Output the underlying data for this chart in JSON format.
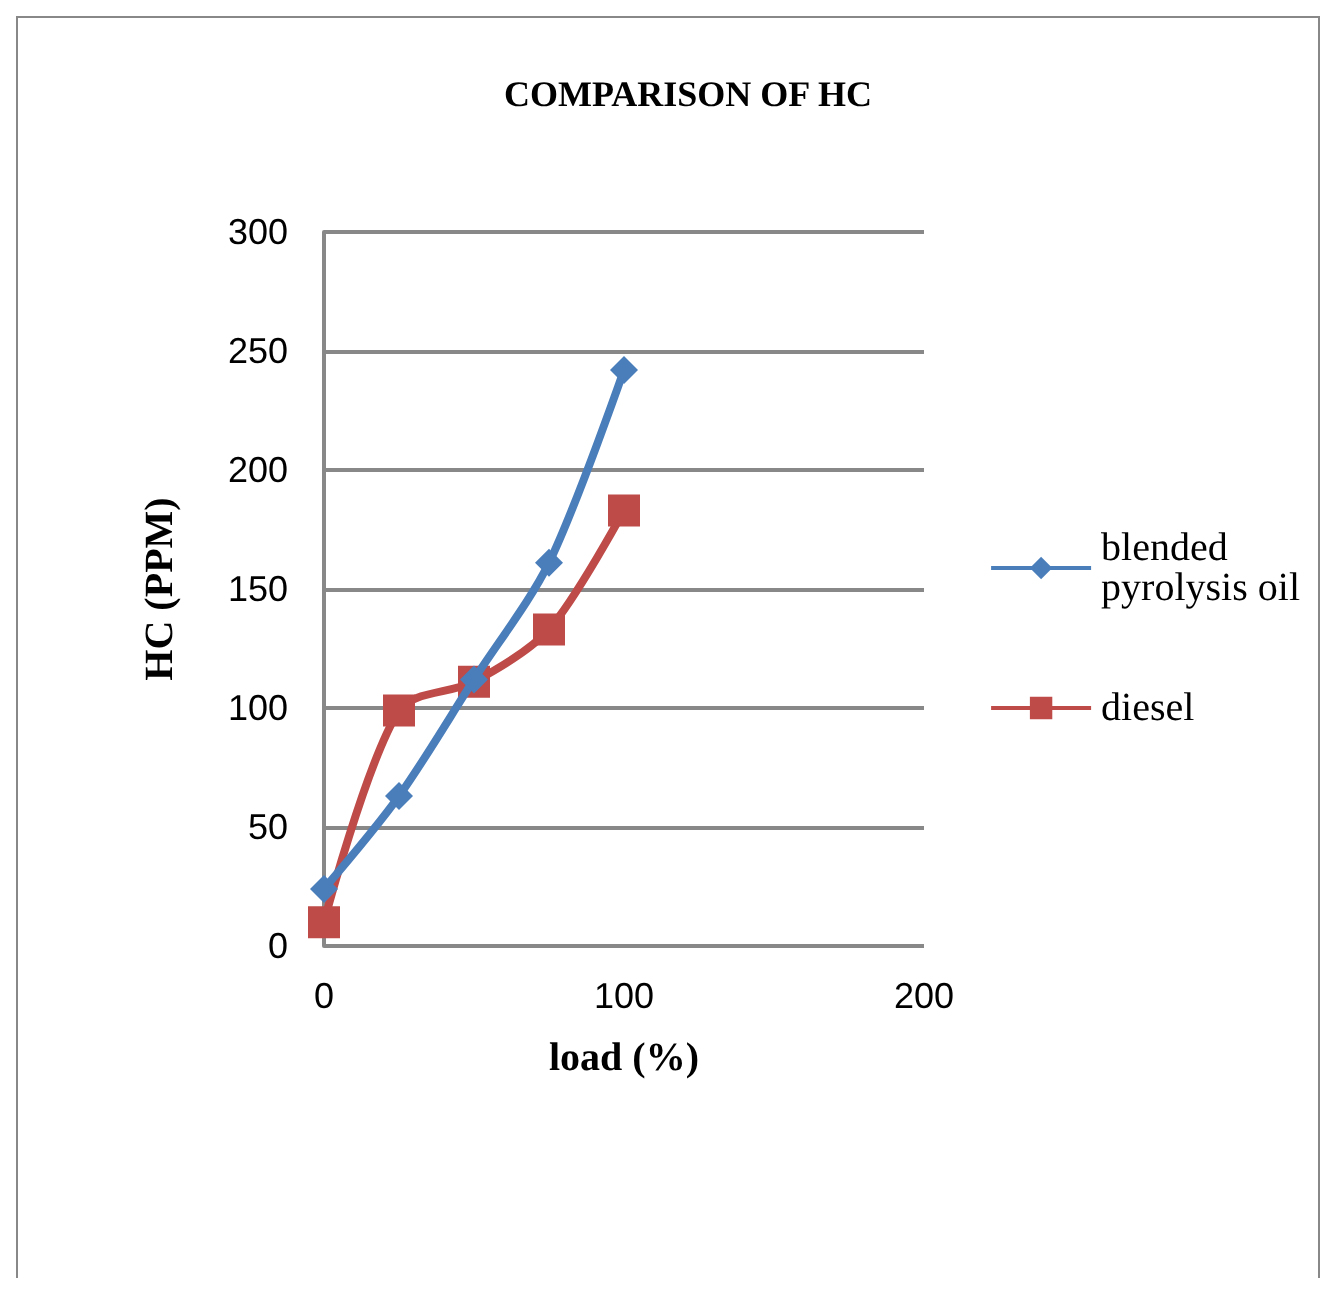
{
  "chart_data": {
    "type": "line",
    "title": "COMPARISON OF HC",
    "xlabel": "load (%)",
    "ylabel": "HC (PPM)",
    "x": [
      0,
      25,
      50,
      75,
      100
    ],
    "series": [
      {
        "name": "blended pyrolysis oil",
        "color": "#4a7ebb",
        "marker": "diamond",
        "values": [
          24,
          63,
          112,
          161,
          242
        ]
      },
      {
        "name": "diesel",
        "color": "#be4b48",
        "marker": "square",
        "values": [
          10,
          99,
          111,
          133,
          183
        ]
      }
    ],
    "xlim": [
      0,
      200
    ],
    "xticks": [
      0,
      100,
      200
    ],
    "ylim": [
      0,
      300
    ],
    "yticks": [
      0,
      50,
      100,
      150,
      200,
      250,
      300
    ],
    "grid": "y",
    "legend": "right"
  }
}
